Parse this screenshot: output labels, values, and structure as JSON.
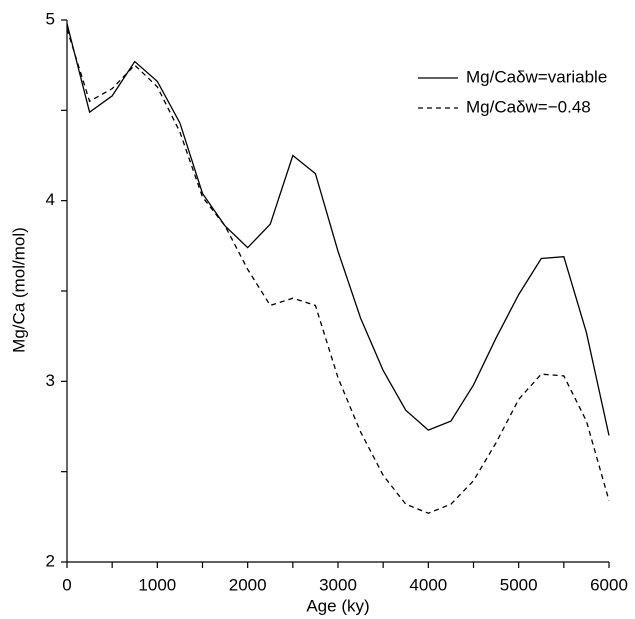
{
  "chart_data": {
    "type": "line",
    "x": [
      0,
      250,
      500,
      750,
      1000,
      1250,
      1500,
      1750,
      2000,
      2250,
      2500,
      2750,
      3000,
      3250,
      3500,
      3750,
      4000,
      4250,
      4500,
      4750,
      5000,
      5250,
      5500,
      5750,
      6000
    ],
    "series": [
      {
        "name": "Mg/Caδw=variable",
        "color": "#000000",
        "dash": "none",
        "values": [
          4.98,
          4.49,
          4.58,
          4.77,
          4.66,
          4.43,
          4.04,
          3.86,
          3.74,
          3.87,
          4.25,
          4.15,
          3.72,
          3.35,
          3.06,
          2.84,
          2.73,
          2.78,
          2.98,
          3.24,
          3.48,
          3.68,
          3.69,
          3.27,
          2.7
        ]
      },
      {
        "name": "Mg/Caδw=−0.48",
        "color": "#000000",
        "dash": "5,4",
        "values": [
          4.95,
          4.55,
          4.62,
          4.75,
          4.63,
          4.38,
          4.02,
          3.86,
          3.62,
          3.42,
          3.46,
          3.42,
          3.02,
          2.72,
          2.48,
          2.32,
          2.27,
          2.32,
          2.45,
          2.66,
          2.9,
          3.04,
          3.03,
          2.78,
          2.34
        ]
      }
    ],
    "x_label": "Age (ky)",
    "y_label": "Mg/Ca (mol/mol)",
    "xlim": [
      0,
      6000
    ],
    "xticks": [
      0,
      1000,
      2000,
      3000,
      4000,
      5000,
      6000
    ],
    "xminorticks": [
      500,
      1500,
      2500,
      3500,
      4500,
      5500
    ],
    "ylim": [
      2,
      5
    ],
    "yticks": [
      2,
      3,
      4,
      5
    ],
    "yminorticks": [
      2.5,
      3.5,
      4.5
    ],
    "grid": false,
    "legend": "upper right"
  }
}
